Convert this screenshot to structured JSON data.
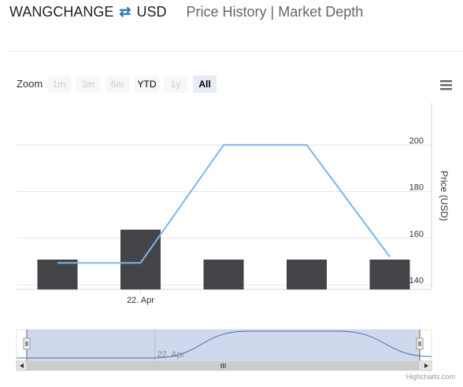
{
  "header": {
    "base": "WANGCHANGE",
    "swap_icon": "swap-arrows-icon",
    "quote": "USD",
    "link_price_history": "Price History",
    "link_separator": "|",
    "link_market_depth": "Market Depth"
  },
  "toolbar": {
    "zoom_label": "Zoom",
    "range_buttons": [
      {
        "label": "1m",
        "state": "disabled"
      },
      {
        "label": "3m",
        "state": "disabled"
      },
      {
        "label": "6m",
        "state": "disabled"
      },
      {
        "label": "YTD",
        "state": "normal"
      },
      {
        "label": "1y",
        "state": "disabled"
      },
      {
        "label": "All",
        "state": "selected"
      }
    ],
    "menu_icon": "hamburger-menu-icon"
  },
  "credit": "Highcharts.com",
  "colors": {
    "line": "#7cb5ec",
    "bars": "#434348",
    "navigator_fill": "#ccd6eb",
    "navigator_line": "#4572a7",
    "swap_icon": "#2a7ab8"
  },
  "chart_data": {
    "type": "line+bar",
    "x": [
      "2019-04-18",
      "2019-04-22",
      "2019-04-26",
      "2019-04-30",
      "2019-05-04"
    ],
    "series": [
      {
        "type": "line",
        "values": [
          149.4,
          149.4,
          200,
          200,
          152
        ]
      },
      {
        "type": "bar",
        "values": [
          1,
          2,
          1,
          1,
          1
        ]
      }
    ],
    "x_tick_labels": [
      {
        "x": "2019-04-22",
        "label": "22. Apr"
      }
    ],
    "ylabel": "Price (USD)",
    "y_ticks": [
      140,
      160,
      180,
      200
    ],
    "ylim": [
      138,
      218
    ],
    "y_axis_side": "right",
    "grid": true,
    "navigator": {
      "x_tick_labels": [
        {
          "x": "2019-04-22",
          "label": "22. Apr"
        }
      ]
    }
  }
}
